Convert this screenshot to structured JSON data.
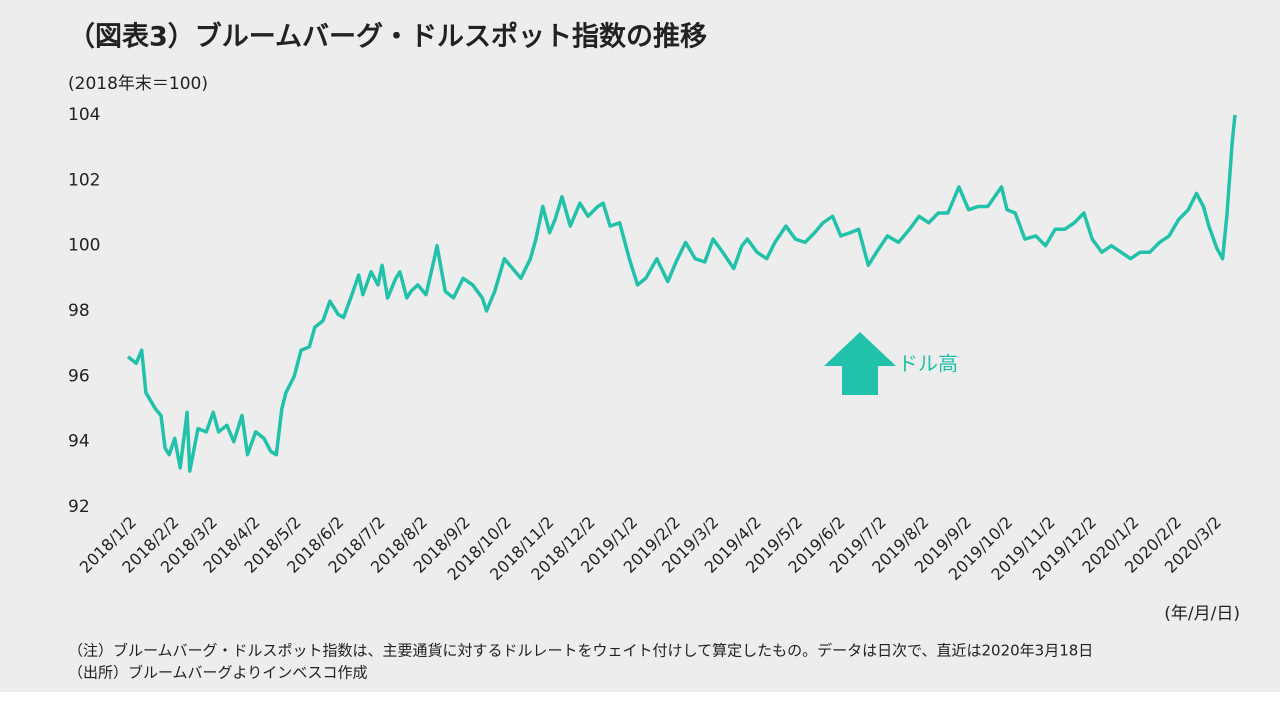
{
  "chart_data": {
    "type": "line",
    "title": "（図表3）ブルームバーグ・ドルスポット指数の推移",
    "y_axis_label": "(2018年末＝100)",
    "x_axis_label": "(年/月/日)",
    "annotation": "ドル高",
    "notes": [
      "（注）ブルームバーグ・ドルスポット指数は、主要通貨に対するドルレートをウェイト付けして算定したもの。データは日次で、直近は2020年3月18日",
      "（出所）ブルームバーグよりインベスコ作成"
    ],
    "color": "#22c1aa",
    "grid": false,
    "xlim": [
      "2018/1/2",
      "2020/3/18"
    ],
    "xticks": [
      "2018/1/2",
      "2018/2/2",
      "2018/3/2",
      "2018/4/2",
      "2018/5/2",
      "2018/6/2",
      "2018/7/2",
      "2018/8/2",
      "2018/9/2",
      "2018/10/2",
      "2018/11/2",
      "2018/12/2",
      "2019/1/2",
      "2019/2/2",
      "2019/3/2",
      "2019/4/2",
      "2019/5/2",
      "2019/6/2",
      "2019/7/2",
      "2019/8/2",
      "2019/9/2",
      "2019/10/2",
      "2019/11/2",
      "2019/12/2",
      "2020/1/2",
      "2020/2/2",
      "2020/3/2"
    ],
    "ylim": [
      92,
      104
    ],
    "yticks": [
      92,
      94,
      96,
      98,
      100,
      102,
      104
    ],
    "x": [
      "2018/1/2",
      "2018/1/8",
      "2018/1/12",
      "2018/1/15",
      "2018/1/22",
      "2018/1/26",
      "2018/1/29",
      "2018/2/1",
      "2018/2/5",
      "2018/2/9",
      "2018/2/14",
      "2018/2/16",
      "2018/2/22",
      "2018/2/28",
      "2018/3/5",
      "2018/3/9",
      "2018/3/15",
      "2018/3/20",
      "2018/3/26",
      "2018/3/30",
      "2018/4/5",
      "2018/4/11",
      "2018/4/16",
      "2018/4/20",
      "2018/4/24",
      "2018/4/27",
      "2018/5/3",
      "2018/5/8",
      "2018/5/14",
      "2018/5/18",
      "2018/5/24",
      "2018/5/29",
      "2018/6/4",
      "2018/6/8",
      "2018/6/14",
      "2018/6/19",
      "2018/6/22",
      "2018/6/28",
      "2018/7/3",
      "2018/7/6",
      "2018/7/10",
      "2018/7/16",
      "2018/7/19",
      "2018/7/24",
      "2018/7/27",
      "2018/8/1",
      "2018/8/7",
      "2018/8/13",
      "2018/8/15",
      "2018/8/21",
      "2018/8/27",
      "2018/9/3",
      "2018/9/10",
      "2018/9/17",
      "2018/9/20",
      "2018/9/26",
      "2018/10/3",
      "2018/10/9",
      "2018/10/15",
      "2018/10/22",
      "2018/10/26",
      "2018/10/31",
      "2018/11/5",
      "2018/11/9",
      "2018/11/14",
      "2018/11/20",
      "2018/11/27",
      "2018/12/3",
      "2018/12/10",
      "2018/12/14",
      "2018/12/19",
      "2018/12/26",
      "2019/1/2",
      "2019/1/8",
      "2019/1/14",
      "2019/1/22",
      "2019/1/30",
      "2019/2/5",
      "2019/2/12",
      "2019/2/19",
      "2019/2/26",
      "2019/3/4",
      "2019/3/11",
      "2019/3/19",
      "2019/3/25",
      "2019/3/29",
      "2019/4/5",
      "2019/4/12",
      "2019/4/18",
      "2019/4/26",
      "2019/5/3",
      "2019/5/10",
      "2019/5/17",
      "2019/5/23",
      "2019/5/30",
      "2019/6/5",
      "2019/6/12",
      "2019/6/18",
      "2019/6/25",
      "2019/7/1",
      "2019/7/9",
      "2019/7/17",
      "2019/7/25",
      "2019/8/1",
      "2019/8/8",
      "2019/8/15",
      "2019/8/22",
      "2019/8/30",
      "2019/9/6",
      "2019/9/13",
      "2019/9/20",
      "2019/9/30",
      "2019/10/4",
      "2019/10/10",
      "2019/10/17",
      "2019/10/25",
      "2019/11/1",
      "2019/11/8",
      "2019/11/15",
      "2019/11/22",
      "2019/11/29",
      "2019/12/5",
      "2019/12/12",
      "2019/12/19",
      "2019/12/26",
      "2020/1/2",
      "2020/1/9",
      "2020/1/16",
      "2020/1/23",
      "2020/1/30",
      "2020/2/6",
      "2020/2/13",
      "2020/2/19",
      "2020/2/24",
      "2020/2/28",
      "2020/3/5",
      "2020/3/9",
      "2020/3/12",
      "2020/3/16",
      "2020/3/18"
    ],
    "values": [
      96.6,
      96.4,
      96.8,
      95.5,
      95.0,
      94.8,
      93.8,
      93.6,
      94.1,
      93.2,
      94.9,
      93.1,
      94.4,
      94.3,
      94.9,
      94.3,
      94.5,
      94.0,
      94.8,
      93.6,
      94.3,
      94.1,
      93.7,
      93.6,
      95.0,
      95.5,
      96.0,
      96.8,
      96.9,
      97.5,
      97.7,
      98.3,
      97.9,
      97.8,
      98.5,
      99.1,
      98.5,
      99.2,
      98.8,
      99.4,
      98.4,
      99.0,
      99.2,
      98.4,
      98.6,
      98.8,
      98.5,
      99.6,
      100.0,
      98.6,
      98.4,
      99.0,
      98.8,
      98.4,
      98.0,
      98.6,
      99.6,
      99.3,
      99.0,
      99.6,
      100.2,
      101.2,
      100.4,
      100.8,
      101.5,
      100.6,
      101.3,
      100.9,
      101.2,
      101.3,
      100.6,
      100.7,
      99.6,
      98.8,
      99.0,
      99.6,
      98.9,
      99.5,
      100.1,
      99.6,
      99.5,
      100.2,
      99.8,
      99.3,
      100.0,
      100.2,
      99.8,
      99.6,
      100.1,
      100.6,
      100.2,
      100.1,
      100.4,
      100.7,
      100.9,
      100.3,
      100.4,
      100.5,
      99.4,
      99.8,
      100.3,
      100.1,
      100.5,
      100.9,
      100.7,
      101.0,
      101.0,
      101.8,
      101.1,
      101.2,
      101.2,
      101.8,
      101.1,
      101.0,
      100.2,
      100.3,
      100.0,
      100.5,
      100.5,
      100.7,
      101.0,
      100.2,
      99.8,
      100.0,
      99.8,
      99.6,
      99.8,
      99.8,
      100.1,
      100.3,
      100.8,
      101.1,
      101.6,
      101.2,
      100.6,
      99.9,
      99.6,
      100.9,
      103.2,
      104.0
    ]
  }
}
